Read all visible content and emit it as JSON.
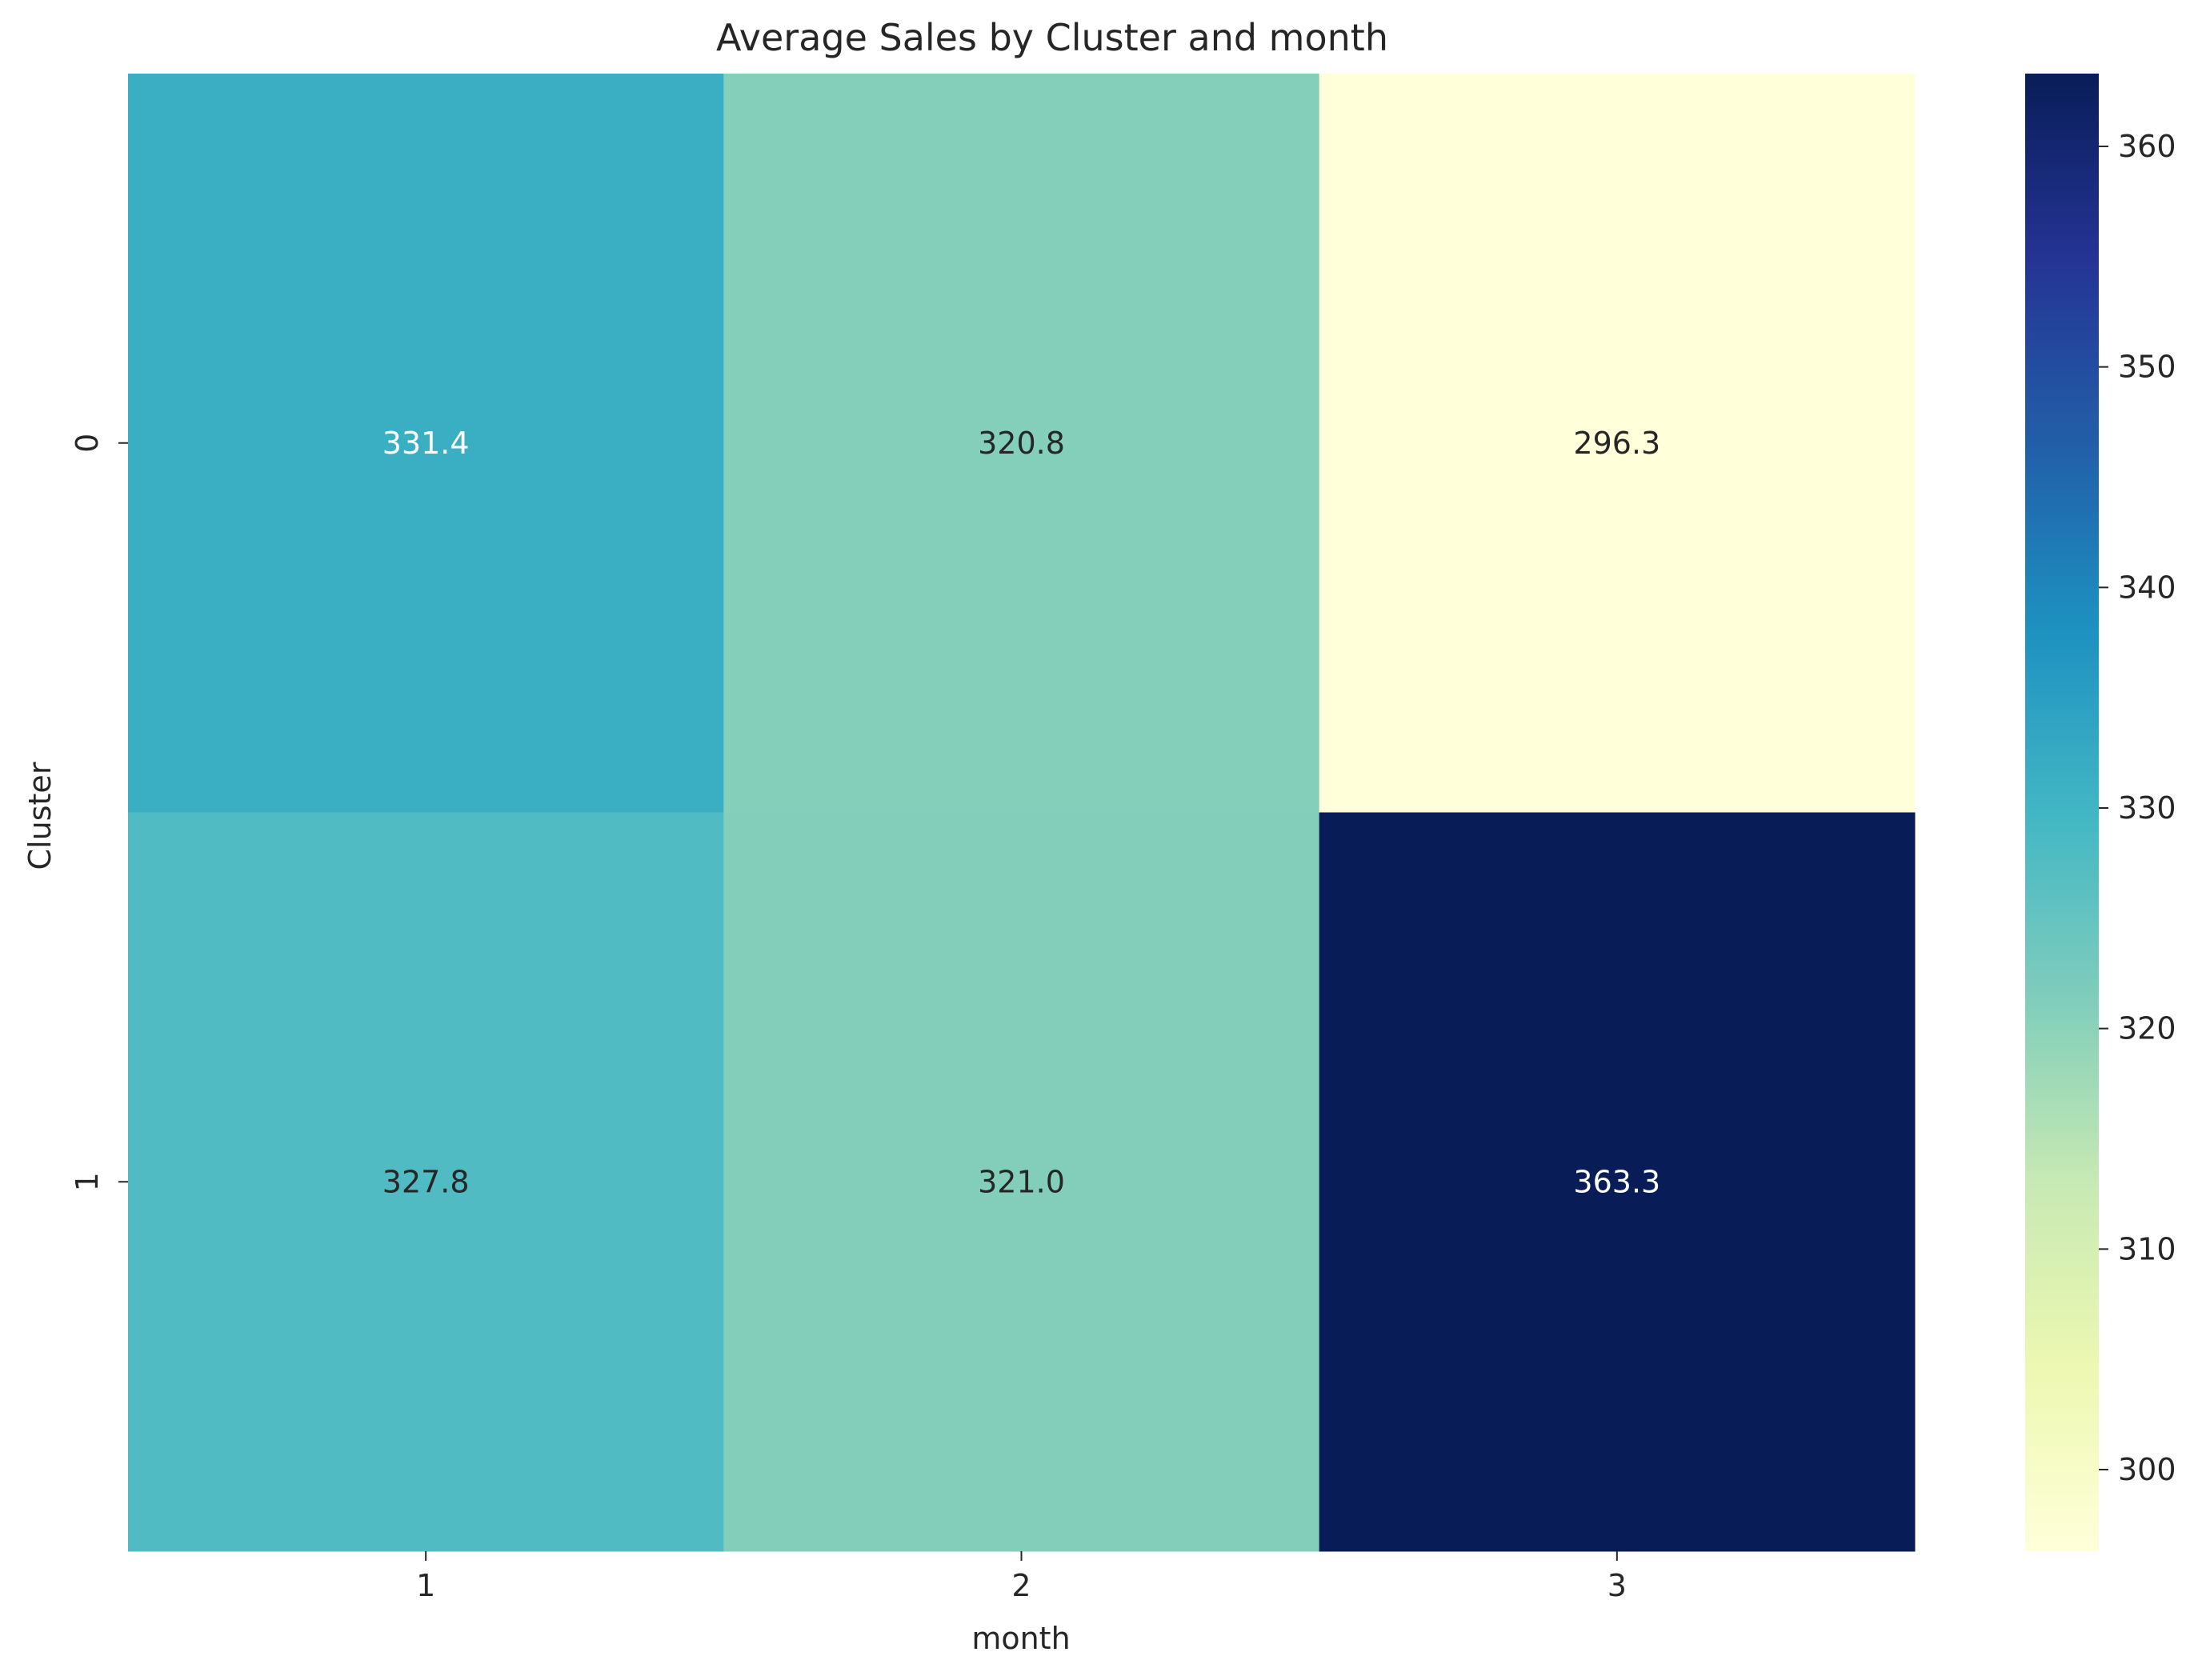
{
  "chart_data": {
    "type": "heatmap",
    "title": "Average Sales by Cluster and month",
    "xlabel": "month",
    "ylabel": "Cluster",
    "x_categories": [
      "1",
      "2",
      "3"
    ],
    "y_categories": [
      "0",
      "1"
    ],
    "values": [
      [
        331.4,
        320.8,
        296.3
      ],
      [
        327.8,
        321.0,
        363.3
      ]
    ],
    "value_labels": [
      [
        "331.4",
        "320.8",
        "296.3"
      ],
      [
        "327.8",
        "321.0",
        "363.3"
      ]
    ],
    "colormap": "YlGnBu",
    "colorbar": {
      "vmin": 296.3,
      "vmax": 363.3,
      "ticks": [
        300,
        310,
        320,
        330,
        340,
        350,
        360
      ],
      "tick_labels": [
        "300",
        "310",
        "320",
        "330",
        "340",
        "350",
        "360"
      ]
    },
    "annotation_colors": {
      "light": "#ffffff",
      "dark": "#262626"
    },
    "grid": false
  }
}
